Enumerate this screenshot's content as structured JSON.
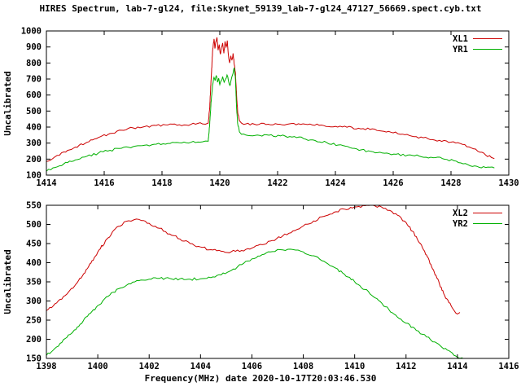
{
  "header": {
    "title": "HIRES Spectrum, lab-7-gl24, file:Skynet_59139_lab-7-gl24_47127_56669.spect.cyb.txt"
  },
  "axes": {
    "xlabel": "Frequency(MHz) date 2020-10-17T20:03:46.530",
    "ylabel": "Uncalibrated"
  },
  "colors": {
    "background": "#ffffff",
    "axis": "#000000",
    "series_red": "#cc0000",
    "series_green": "#00b000"
  },
  "chart_data": [
    {
      "type": "line",
      "panel": "top",
      "ylabel": "Uncalibrated",
      "xlim": [
        1414,
        1430
      ],
      "ylim": [
        100,
        1000
      ],
      "xticks": [
        1414,
        1416,
        1418,
        1420,
        1422,
        1424,
        1426,
        1428,
        1430
      ],
      "yticks": [
        100,
        200,
        300,
        400,
        500,
        600,
        700,
        800,
        900,
        1000
      ],
      "grid": false,
      "legend_position": "top-right",
      "series": [
        {
          "name": "XL1",
          "color": "#cc0000",
          "points": [
            [
              1414,
              185
            ],
            [
              1414.3,
              215
            ],
            [
              1414.6,
              245
            ],
            [
              1415,
              275
            ],
            [
              1415.4,
              305
            ],
            [
              1415.8,
              335
            ],
            [
              1416.2,
              360
            ],
            [
              1416.6,
              380
            ],
            [
              1417,
              395
            ],
            [
              1417.4,
              403
            ],
            [
              1417.8,
              410
            ],
            [
              1418.2,
              413
            ],
            [
              1418.6,
              415
            ],
            [
              1419,
              417
            ],
            [
              1419.4,
              420
            ],
            [
              1419.6,
              425
            ],
            [
              1419.65,
              520
            ],
            [
              1419.7,
              700
            ],
            [
              1419.75,
              870
            ],
            [
              1419.8,
              950
            ],
            [
              1419.83,
              890
            ],
            [
              1419.86,
              930
            ],
            [
              1419.9,
              960
            ],
            [
              1419.94,
              880
            ],
            [
              1419.98,
              915
            ],
            [
              1420.02,
              855
            ],
            [
              1420.06,
              900
            ],
            [
              1420.1,
              925
            ],
            [
              1420.14,
              860
            ],
            [
              1420.18,
              935
            ],
            [
              1420.22,
              900
            ],
            [
              1420.26,
              940
            ],
            [
              1420.3,
              850
            ],
            [
              1420.34,
              800
            ],
            [
              1420.38,
              845
            ],
            [
              1420.42,
              820
            ],
            [
              1420.46,
              860
            ],
            [
              1420.5,
              790
            ],
            [
              1420.54,
              740
            ],
            [
              1420.58,
              600
            ],
            [
              1420.62,
              490
            ],
            [
              1420.68,
              440
            ],
            [
              1420.75,
              425
            ],
            [
              1420.9,
              420
            ],
            [
              1421.2,
              418
            ],
            [
              1421.6,
              416
            ],
            [
              1422,
              418
            ],
            [
              1422.4,
              420
            ],
            [
              1422.8,
              417
            ],
            [
              1423.2,
              413
            ],
            [
              1423.6,
              409
            ],
            [
              1424,
              404
            ],
            [
              1424.4,
              399
            ],
            [
              1424.8,
              393
            ],
            [
              1425.2,
              385
            ],
            [
              1425.6,
              375
            ],
            [
              1426,
              364
            ],
            [
              1426.4,
              352
            ],
            [
              1426.8,
              340
            ],
            [
              1427.2,
              328
            ],
            [
              1427.6,
              317
            ],
            [
              1428,
              306
            ],
            [
              1428.4,
              292
            ],
            [
              1428.7,
              270
            ],
            [
              1429,
              243
            ],
            [
              1429.2,
              225
            ],
            [
              1429.4,
              210
            ],
            [
              1429.5,
              203
            ]
          ]
        },
        {
          "name": "YR1",
          "color": "#00b000",
          "points": [
            [
              1414,
              125
            ],
            [
              1414.3,
              148
            ],
            [
              1414.6,
              170
            ],
            [
              1415,
              195
            ],
            [
              1415.4,
              218
            ],
            [
              1415.8,
              238
            ],
            [
              1416.2,
              255
            ],
            [
              1416.6,
              268
            ],
            [
              1417,
              278
            ],
            [
              1417.4,
              287
            ],
            [
              1417.8,
              293
            ],
            [
              1418.2,
              298
            ],
            [
              1418.6,
              302
            ],
            [
              1419,
              305
            ],
            [
              1419.4,
              308
            ],
            [
              1419.6,
              312
            ],
            [
              1419.65,
              420
            ],
            [
              1419.7,
              560
            ],
            [
              1419.75,
              660
            ],
            [
              1419.8,
              710
            ],
            [
              1419.84,
              690
            ],
            [
              1419.88,
              720
            ],
            [
              1419.92,
              680
            ],
            [
              1419.96,
              705
            ],
            [
              1420,
              665
            ],
            [
              1420.05,
              690
            ],
            [
              1420.1,
              715
            ],
            [
              1420.15,
              680
            ],
            [
              1420.2,
              700
            ],
            [
              1420.25,
              725
            ],
            [
              1420.3,
              690
            ],
            [
              1420.35,
              660
            ],
            [
              1420.4,
              700
            ],
            [
              1420.45,
              730
            ],
            [
              1420.5,
              770
            ],
            [
              1420.54,
              700
            ],
            [
              1420.58,
              520
            ],
            [
              1420.62,
              420
            ],
            [
              1420.68,
              370
            ],
            [
              1420.75,
              355
            ],
            [
              1420.9,
              350
            ],
            [
              1421.3,
              350
            ],
            [
              1421.7,
              349
            ],
            [
              1422.1,
              345
            ],
            [
              1422.5,
              338
            ],
            [
              1422.9,
              328
            ],
            [
              1423.3,
              316
            ],
            [
              1423.7,
              303
            ],
            [
              1424.1,
              288
            ],
            [
              1424.5,
              272
            ],
            [
              1424.9,
              258
            ],
            [
              1425.3,
              246
            ],
            [
              1425.7,
              237
            ],
            [
              1426.1,
              230
            ],
            [
              1426.5,
              225
            ],
            [
              1426.9,
              219
            ],
            [
              1427.3,
              212
            ],
            [
              1427.7,
              203
            ],
            [
              1428.1,
              190
            ],
            [
              1428.5,
              172
            ],
            [
              1428.9,
              155
            ],
            [
              1429.2,
              148
            ],
            [
              1429.5,
              145
            ]
          ]
        }
      ]
    },
    {
      "type": "line",
      "panel": "bottom",
      "ylabel": "Uncalibrated",
      "xlim": [
        1398,
        1416
      ],
      "ylim": [
        150,
        550
      ],
      "xticks": [
        1398,
        1400,
        1402,
        1404,
        1406,
        1408,
        1410,
        1412,
        1414,
        1416
      ],
      "yticks": [
        150,
        200,
        250,
        300,
        350,
        400,
        450,
        500,
        550
      ],
      "grid": false,
      "legend_position": "top-right",
      "series": [
        {
          "name": "XL2",
          "color": "#cc0000",
          "points": [
            [
              1398,
              275
            ],
            [
              1398.4,
              295
            ],
            [
              1398.8,
              318
            ],
            [
              1399.2,
              348
            ],
            [
              1399.6,
              385
            ],
            [
              1400,
              428
            ],
            [
              1400.4,
              465
            ],
            [
              1400.8,
              495
            ],
            [
              1401.1,
              508
            ],
            [
              1401.4,
              512
            ],
            [
              1401.7,
              510
            ],
            [
              1402,
              503
            ],
            [
              1402.4,
              490
            ],
            [
              1402.8,
              475
            ],
            [
              1403.2,
              462
            ],
            [
              1403.6,
              450
            ],
            [
              1404,
              441
            ],
            [
              1404.4,
              434
            ],
            [
              1404.8,
              430
            ],
            [
              1405.2,
              429
            ],
            [
              1405.6,
              432
            ],
            [
              1406,
              438
            ],
            [
              1406.4,
              447
            ],
            [
              1406.8,
              458
            ],
            [
              1407.2,
              470
            ],
            [
              1407.6,
              483
            ],
            [
              1408,
              496
            ],
            [
              1408.4,
              509
            ],
            [
              1408.8,
              521
            ],
            [
              1409.2,
              532
            ],
            [
              1409.6,
              540
            ],
            [
              1410,
              546
            ],
            [
              1410.4,
              549
            ],
            [
              1410.8,
              548
            ],
            [
              1411.2,
              542
            ],
            [
              1411.6,
              528
            ],
            [
              1412,
              505
            ],
            [
              1412.4,
              468
            ],
            [
              1412.8,
              420
            ],
            [
              1413.2,
              360
            ],
            [
              1413.5,
              315
            ],
            [
              1413.8,
              282
            ],
            [
              1414,
              266
            ],
            [
              1414.1,
              270
            ]
          ]
        },
        {
          "name": "YR2",
          "color": "#00b000",
          "points": [
            [
              1398,
              158
            ],
            [
              1398.4,
              180
            ],
            [
              1398.8,
              205
            ],
            [
              1399.2,
              232
            ],
            [
              1399.6,
              260
            ],
            [
              1400,
              288
            ],
            [
              1400.4,
              312
            ],
            [
              1400.8,
              332
            ],
            [
              1401.2,
              345
            ],
            [
              1401.6,
              353
            ],
            [
              1402,
              357
            ],
            [
              1402.4,
              359
            ],
            [
              1402.8,
              359
            ],
            [
              1403.2,
              358
            ],
            [
              1403.6,
              357
            ],
            [
              1404,
              358
            ],
            [
              1404.4,
              361
            ],
            [
              1404.8,
              368
            ],
            [
              1405.2,
              380
            ],
            [
              1405.6,
              395
            ],
            [
              1406,
              410
            ],
            [
              1406.4,
              421
            ],
            [
              1406.8,
              429
            ],
            [
              1407.1,
              434
            ],
            [
              1407.4,
              435
            ],
            [
              1407.7,
              433
            ],
            [
              1408,
              428
            ],
            [
              1408.4,
              418
            ],
            [
              1408.8,
              404
            ],
            [
              1409.2,
              388
            ],
            [
              1409.6,
              370
            ],
            [
              1410,
              350
            ],
            [
              1410.4,
              330
            ],
            [
              1410.8,
              308
            ],
            [
              1411.2,
              285
            ],
            [
              1411.6,
              263
            ],
            [
              1412,
              242
            ],
            [
              1412.4,
              223
            ],
            [
              1412.8,
              206
            ],
            [
              1413.2,
              190
            ],
            [
              1413.6,
              172
            ],
            [
              1414,
              153
            ],
            [
              1414.2,
              152
            ]
          ]
        }
      ]
    }
  ]
}
